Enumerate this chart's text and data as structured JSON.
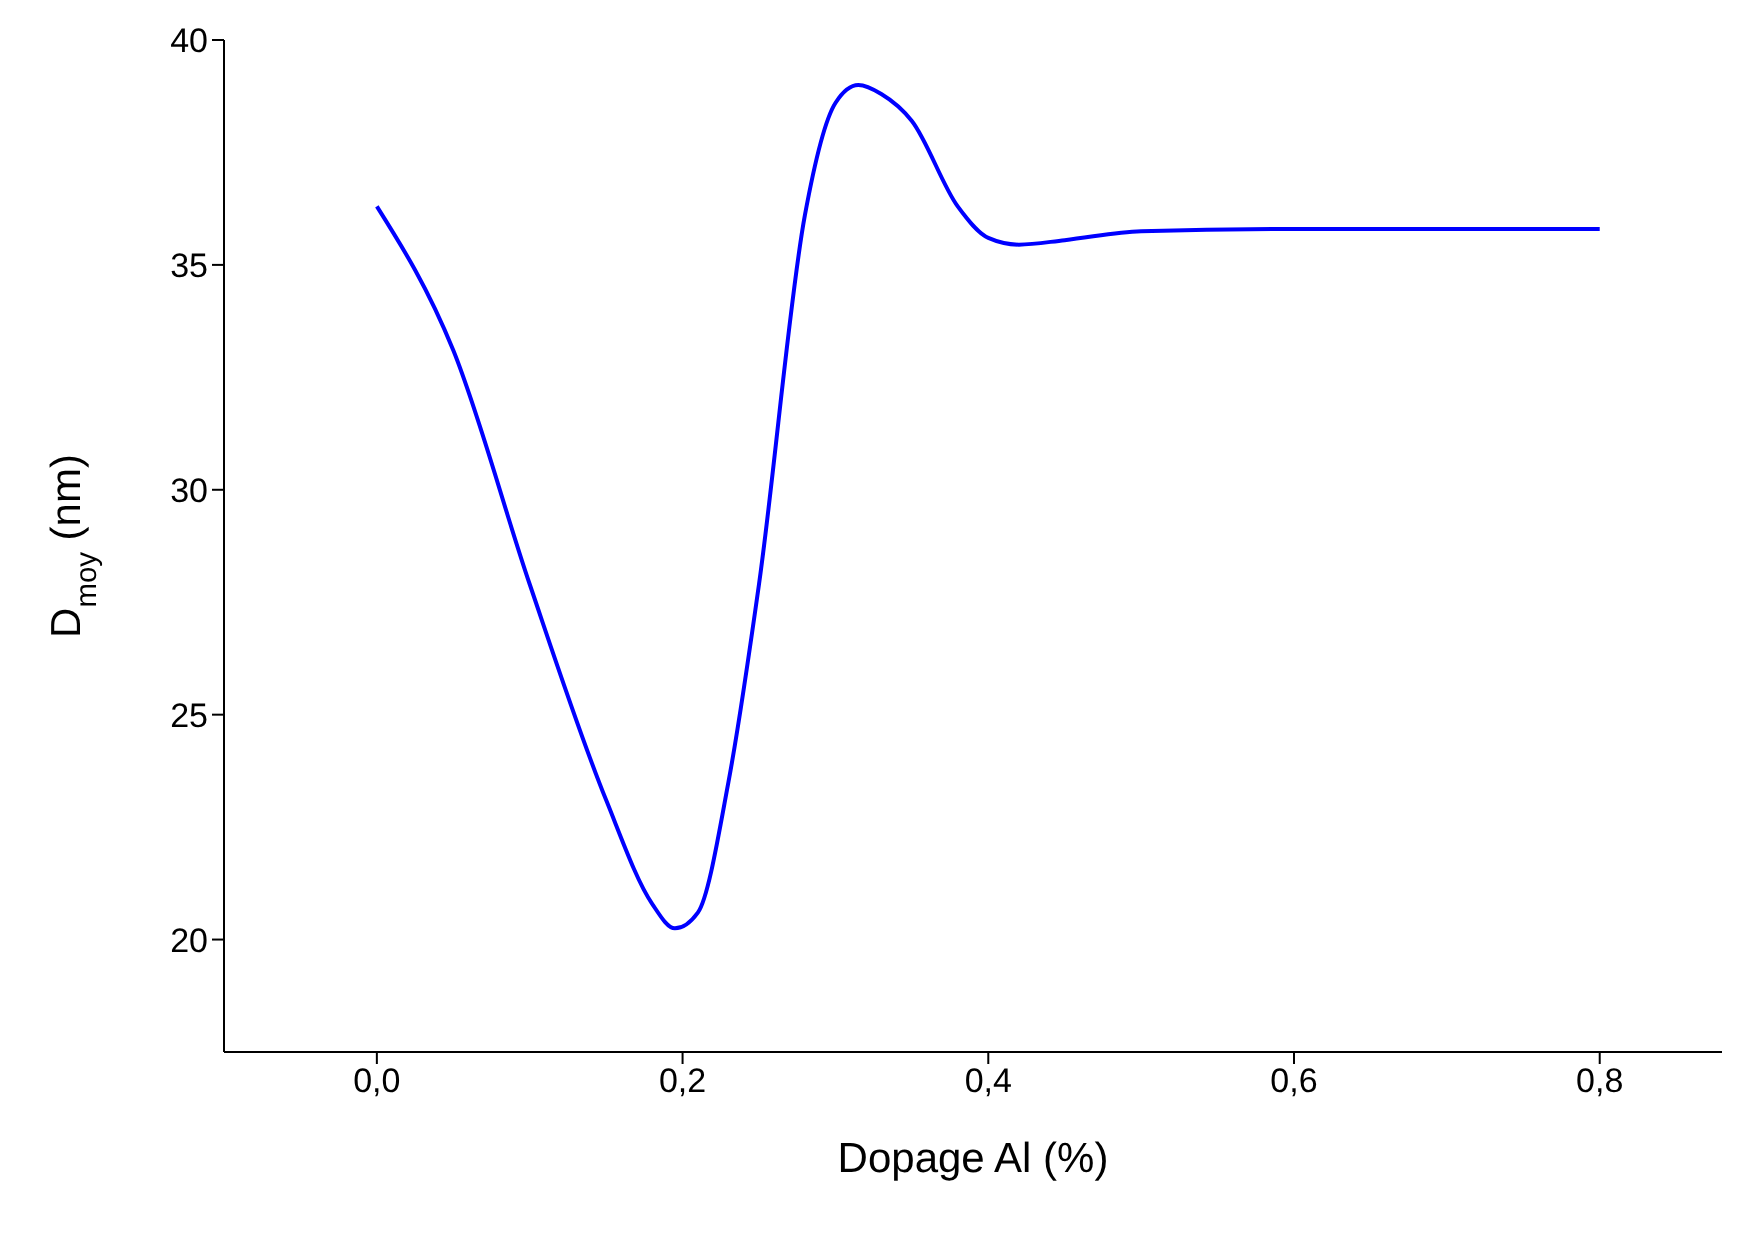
{
  "chart_data": {
    "type": "line",
    "xlabel": "Dopage Al (%)",
    "ylabel": "D$_{moy}$ (nm)",
    "x": [
      0,
      0.05,
      0.1,
      0.15,
      0.18,
      0.195,
      0.21,
      0.23,
      0.25,
      0.28,
      0.3,
      0.315,
      0.33,
      0.35,
      0.38,
      0.4,
      0.42,
      0.45,
      0.5,
      0.6,
      0.7,
      0.8
    ],
    "series": [
      {
        "color": "#0000ff",
        "values": [
          36.3,
          33.1,
          27.9,
          23.1,
          20.8,
          20.25,
          20.6,
          23.5,
          27.9,
          36.1,
          38.6,
          39.0,
          38.8,
          38.2,
          36.3,
          35.6,
          35.45,
          35.55,
          35.75,
          35.8,
          35.8,
          35.8
        ]
      }
    ],
    "xlim": [
      -0.1,
      0.88
    ],
    "xticks": [
      {
        "value": 0,
        "label": "0,0"
      },
      {
        "value": 0.2,
        "label": "0,2"
      },
      {
        "value": 0.4,
        "label": "0,4"
      },
      {
        "value": 0.6,
        "label": "0,6"
      },
      {
        "value": 0.8,
        "label": "0,8"
      }
    ],
    "ylim": [
      17.5,
      40
    ],
    "yticks": [
      20,
      25,
      30,
      35,
      40
    ],
    "marker": "none",
    "line_style": "solid"
  }
}
